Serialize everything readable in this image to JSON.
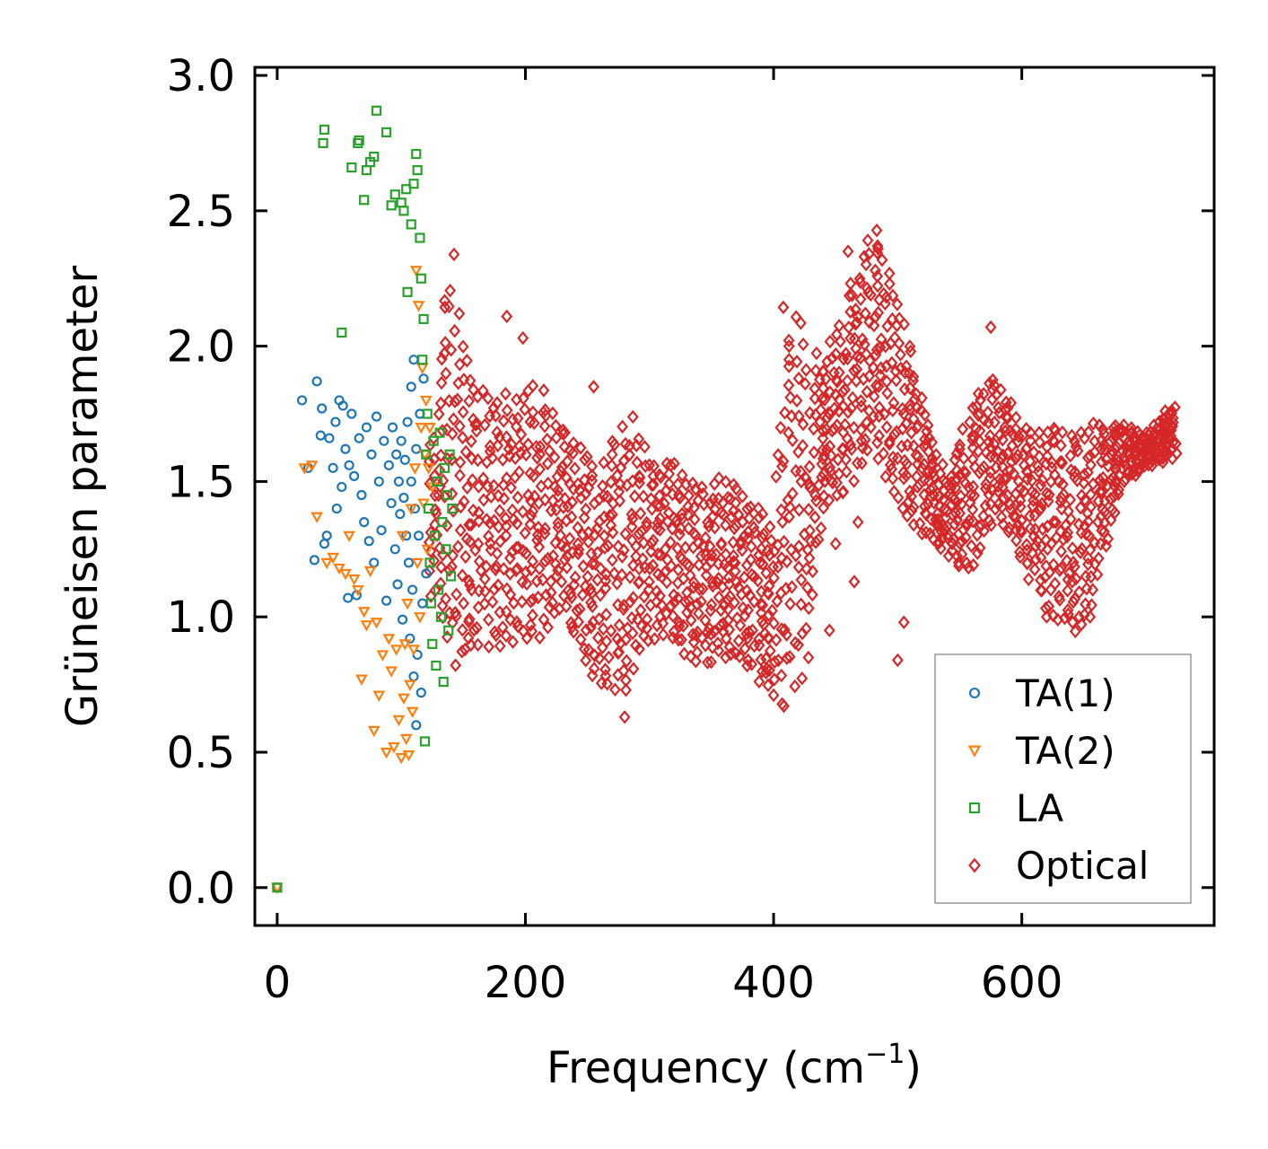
{
  "chart_data": {
    "type": "scatter",
    "xlabel": "Frequency (cm",
    "xlabel_sup": "−1",
    "xlabel_end": ")",
    "ylabel": "Grüneisen parameter",
    "xlim": [
      -18,
      755
    ],
    "ylim": [
      -0.14,
      3.03
    ],
    "xticks": [
      0,
      200,
      400,
      600
    ],
    "xtick_labels": [
      "0",
      "200",
      "400",
      "600"
    ],
    "yticks": [
      0.0,
      0.5,
      1.0,
      1.5,
      2.0,
      2.5,
      3.0
    ],
    "ytick_labels": [
      "0.0",
      "0.5",
      "1.0",
      "1.5",
      "2.0",
      "2.5",
      "3.0"
    ],
    "legend_position": "lower-right",
    "series": [
      {
        "name": "TA(1)",
        "marker": "circle",
        "color": "#1f77b4",
        "points": [
          [
            0,
            0.0
          ],
          [
            20,
            1.8
          ],
          [
            25,
            1.55
          ],
          [
            30,
            1.21
          ],
          [
            32,
            1.87
          ],
          [
            35,
            1.67
          ],
          [
            36,
            1.77
          ],
          [
            38,
            1.27
          ],
          [
            40,
            1.3
          ],
          [
            42,
            1.66
          ],
          [
            45,
            1.55
          ],
          [
            47,
            1.72
          ],
          [
            48,
            1.4
          ],
          [
            50,
            1.8
          ],
          [
            52,
            1.48
          ],
          [
            53,
            1.78
          ],
          [
            55,
            1.62
          ],
          [
            57,
            1.07
          ],
          [
            58,
            1.56
          ],
          [
            60,
            1.75
          ],
          [
            62,
            1.52
          ],
          [
            64,
            1.08
          ],
          [
            66,
            1.66
          ],
          [
            68,
            1.45
          ],
          [
            70,
            1.35
          ],
          [
            72,
            1.7
          ],
          [
            74,
            1.28
          ],
          [
            76,
            1.6
          ],
          [
            78,
            1.2
          ],
          [
            80,
            1.74
          ],
          [
            82,
            1.5
          ],
          [
            84,
            1.32
          ],
          [
            86,
            1.65
          ],
          [
            88,
            1.06
          ],
          [
            90,
            1.56
          ],
          [
            92,
            1.42
          ],
          [
            93,
            1.7
          ],
          [
            95,
            1.25
          ],
          [
            96,
            1.6
          ],
          [
            97,
            1.12
          ],
          [
            98,
            1.5
          ],
          [
            99,
            1.38
          ],
          [
            100,
            1.65
          ],
          [
            101,
            0.99
          ],
          [
            102,
            1.44
          ],
          [
            103,
            1.58
          ],
          [
            104,
            1.3
          ],
          [
            105,
            1.72
          ],
          [
            106,
            1.2
          ],
          [
            107,
            0.92
          ],
          [
            108,
            1.5
          ],
          [
            108,
            1.85
          ],
          [
            109,
            1.1
          ],
          [
            110,
            1.95
          ],
          [
            110,
            0.78
          ],
          [
            111,
            1.4
          ],
          [
            112,
            0.6
          ],
          [
            112,
            1.62
          ],
          [
            113,
            0.86
          ],
          [
            114,
            1.3
          ],
          [
            115,
            1.75
          ],
          [
            116,
            0.72
          ],
          [
            117,
            1.05
          ],
          [
            118,
            1.88
          ],
          [
            120,
            1.16
          ]
        ]
      },
      {
        "name": "TA(2)",
        "marker": "triangle-down",
        "color": "#ff7f0e",
        "points": [
          [
            0,
            0.0
          ],
          [
            22,
            1.55
          ],
          [
            28,
            1.56
          ],
          [
            32,
            1.37
          ],
          [
            40,
            1.2
          ],
          [
            45,
            1.22
          ],
          [
            50,
            1.18
          ],
          [
            55,
            1.16
          ],
          [
            58,
            1.3
          ],
          [
            62,
            1.14
          ],
          [
            65,
            1.1
          ],
          [
            68,
            0.77
          ],
          [
            70,
            1.02
          ],
          [
            72,
            0.97
          ],
          [
            75,
            1.17
          ],
          [
            78,
            0.58
          ],
          [
            80,
            0.98
          ],
          [
            82,
            0.71
          ],
          [
            85,
            0.86
          ],
          [
            88,
            0.5
          ],
          [
            90,
            0.92
          ],
          [
            92,
            0.8
          ],
          [
            94,
            0.52
          ],
          [
            96,
            0.88
          ],
          [
            98,
            0.62
          ],
          [
            100,
            0.48
          ],
          [
            101,
            1.3
          ],
          [
            102,
            0.7
          ],
          [
            103,
            0.9
          ],
          [
            104,
            0.55
          ],
          [
            105,
            1.05
          ],
          [
            106,
            0.49
          ],
          [
            107,
            0.75
          ],
          [
            108,
            1.4
          ],
          [
            109,
            0.65
          ],
          [
            110,
            0.88
          ],
          [
            111,
            1.55
          ],
          [
            112,
            2.28
          ],
          [
            113,
            1.2
          ],
          [
            114,
            2.15
          ],
          [
            115,
            1.0
          ],
          [
            116,
            1.7
          ],
          [
            117,
            1.92
          ],
          [
            118,
            1.42
          ],
          [
            119,
            1.6
          ],
          [
            120,
            1.8
          ],
          [
            121,
            1.25
          ],
          [
            122,
            1.55
          ],
          [
            123,
            1.7
          ],
          [
            125,
            1.48
          ]
        ]
      },
      {
        "name": "LA",
        "marker": "square",
        "color": "#2ca02c",
        "points": [
          [
            0,
            0.0
          ],
          [
            37,
            2.75
          ],
          [
            38,
            2.8
          ],
          [
            52,
            2.05
          ],
          [
            60,
            2.66
          ],
          [
            65,
            2.75
          ],
          [
            66,
            2.76
          ],
          [
            70,
            2.54
          ],
          [
            72,
            2.65
          ],
          [
            75,
            2.68
          ],
          [
            78,
            2.7
          ],
          [
            80,
            2.87
          ],
          [
            88,
            2.79
          ],
          [
            92,
            2.52
          ],
          [
            95,
            2.56
          ],
          [
            100,
            2.53
          ],
          [
            102,
            2.5
          ],
          [
            104,
            2.58
          ],
          [
            105,
            2.2
          ],
          [
            108,
            2.45
          ],
          [
            110,
            2.6
          ],
          [
            112,
            2.71
          ],
          [
            113,
            2.65
          ],
          [
            115,
            2.4
          ],
          [
            116,
            2.25
          ],
          [
            117,
            1.95
          ],
          [
            118,
            2.1
          ],
          [
            119,
            0.54
          ],
          [
            120,
            1.6
          ],
          [
            121,
            1.75
          ],
          [
            122,
            1.4
          ],
          [
            123,
            1.2
          ],
          [
            124,
            1.05
          ],
          [
            125,
            0.9
          ],
          [
            126,
            1.65
          ],
          [
            127,
            1.3
          ],
          [
            128,
            0.82
          ],
          [
            129,
            1.5
          ],
          [
            130,
            1.1
          ],
          [
            131,
            1.68
          ],
          [
            132,
            1.0
          ],
          [
            133,
            1.35
          ],
          [
            134,
            0.76
          ],
          [
            135,
            1.55
          ],
          [
            136,
            1.25
          ],
          [
            137,
            1.45
          ],
          [
            138,
            0.95
          ],
          [
            139,
            1.6
          ],
          [
            140,
            1.15
          ],
          [
            141,
            1.4
          ]
        ]
      },
      {
        "name": "Optical",
        "marker": "diamond",
        "color": "#d62728",
        "band_count": 16,
        "band_points": 110,
        "outliers": [
          [
            185,
            2.11
          ],
          [
            198,
            2.03
          ],
          [
            255,
            1.85
          ],
          [
            280,
            0.63
          ],
          [
            430,
            1.28
          ],
          [
            445,
            0.95
          ],
          [
            450,
            1.27
          ],
          [
            460,
            2.35
          ],
          [
            465,
            1.13
          ],
          [
            468,
            1.35
          ],
          [
            500,
            0.84
          ],
          [
            505,
            0.98
          ],
          [
            575,
            2.07
          ],
          [
            620,
            1.0
          ],
          [
            655,
            1.0
          ]
        ]
      }
    ]
  }
}
